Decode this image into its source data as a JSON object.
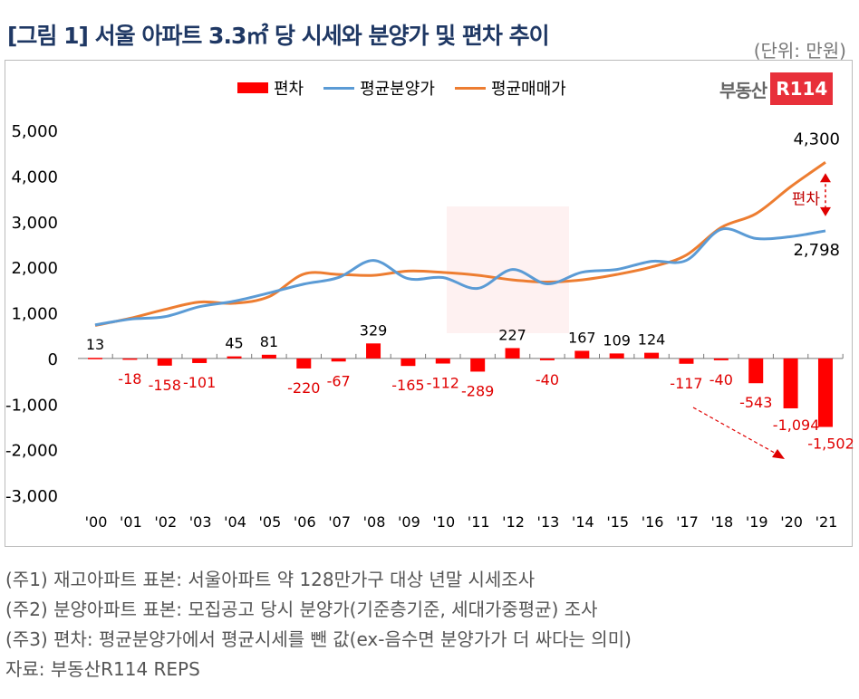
{
  "header": {
    "title": "[그림 1] 서울 아파트 3.3㎡ 당 시세와 분양가 및 편차 추이",
    "unit": "(단위: 만원)"
  },
  "logo": {
    "text": "부동산",
    "badge": "R114"
  },
  "colors": {
    "deviation": "#ff0000",
    "sale_price": "#5b9bd5",
    "market_price": "#ed7d31",
    "title": "#1f3864"
  },
  "chart_data": {
    "type": "bar+line",
    "categories": [
      "'00",
      "'01",
      "'02",
      "'03",
      "'04",
      "'05",
      "'06",
      "'07",
      "'08",
      "'09",
      "'10",
      "'11",
      "'12",
      "'13",
      "'14",
      "'15",
      "'16",
      "'17",
      "'18",
      "'19",
      "'20",
      "'21"
    ],
    "series": [
      {
        "name": "편차",
        "type": "bar",
        "values": [
          13,
          -18,
          -158,
          -101,
          45,
          81,
          -220,
          -67,
          329,
          -165,
          -112,
          -289,
          227,
          -40,
          167,
          109,
          124,
          -117,
          -40,
          -543,
          -1094,
          -1502
        ]
      },
      {
        "name": "평균분양가",
        "type": "line",
        "values": [
          737,
          860,
          915,
          1135,
          1255,
          1435,
          1630,
          1775,
          2150,
          1750,
          1775,
          1535,
          1950,
          1635,
          1890,
          1950,
          2130,
          2150,
          2830,
          2630,
          2670,
          2798
        ]
      },
      {
        "name": "평균매매가",
        "type": "line",
        "values": [
          724,
          878,
          1073,
          1236,
          1210,
          1354,
          1850,
          1842,
          1821,
          1915,
          1887,
          1824,
          1723,
          1675,
          1723,
          1841,
          2006,
          2267,
          2870,
          3173,
          3764,
          4300
        ]
      }
    ],
    "ylim": [
      -3000,
      5000
    ],
    "yticks": [
      "5,000",
      "4,000",
      "3,000",
      "2,000",
      "1,000",
      "0",
      "-1,000",
      "-2,000",
      "-3,000"
    ],
    "bar_labels": [
      "13",
      "-18",
      "-158",
      "-101",
      "45",
      "81",
      "-220",
      "-67",
      "329",
      "-165",
      "-112",
      "-289",
      "227",
      "-40",
      "167",
      "109",
      "124",
      "-117",
      "-40",
      "-543",
      "-1,094",
      "-1,502"
    ],
    "annotations": {
      "market_end": "4,300",
      "sale_end": "2,798",
      "gap_label": "편차"
    },
    "legend": "top",
    "grid": false
  },
  "notes": [
    "(주1) 재고아파트 표본: 서울아파트 약 128만가구 대상 년말 시세조사",
    "(주2) 분양아파트 표본: 모집공고 당시 분양가(기준층기준, 세대가중평균) 조사",
    "(주3) 편차: 평균분양가에서 평균시세를 뺀 값(ex-음수면 분양가가 더 싸다는 의미)",
    "자료: 부동산R114 REPS"
  ]
}
